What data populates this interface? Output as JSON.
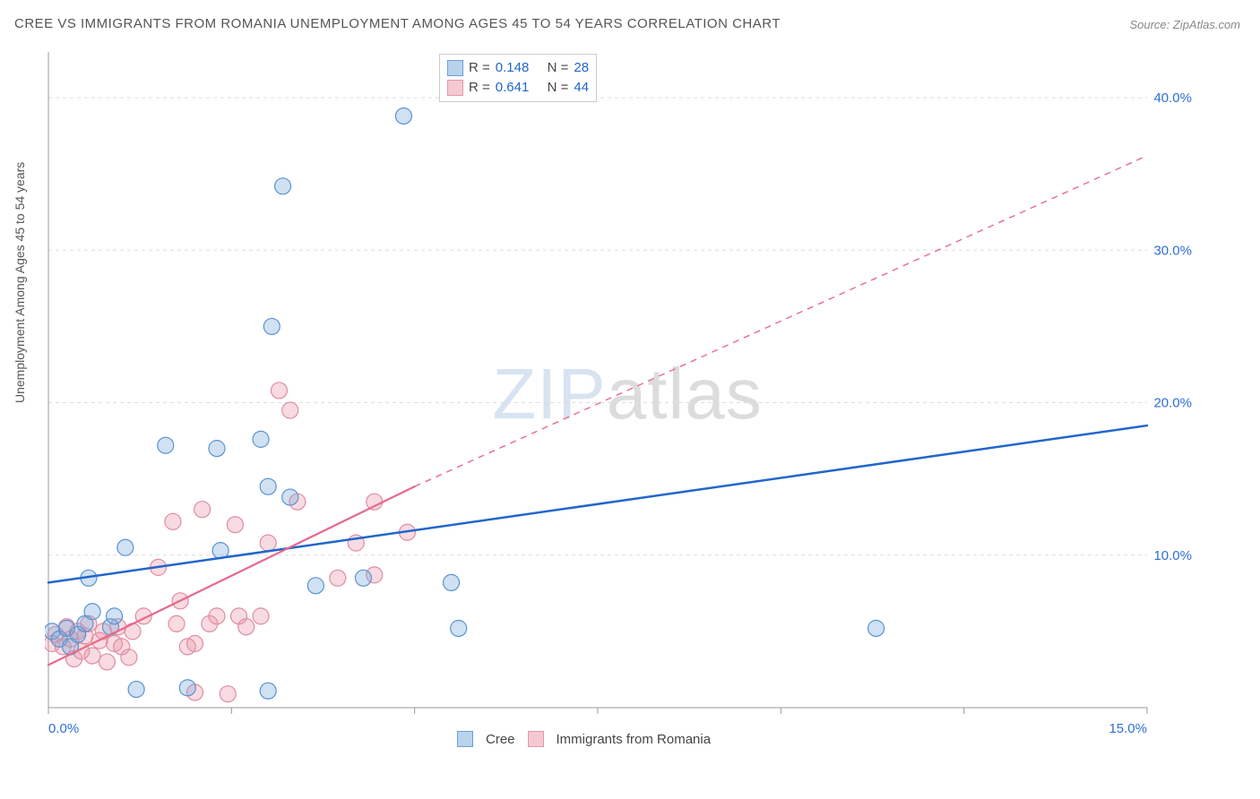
{
  "title": "CREE VS IMMIGRANTS FROM ROMANIA UNEMPLOYMENT AMONG AGES 45 TO 54 YEARS CORRELATION CHART",
  "source": "Source: ZipAtlas.com",
  "ylabel": "Unemployment Among Ages 45 to 54 years",
  "watermark_a": "ZIP",
  "watermark_b": "atlas",
  "chart": {
    "type": "scatter",
    "x_range": [
      0,
      15
    ],
    "y_range": [
      0,
      43
    ],
    "x_ticks": [
      0,
      2.5,
      5,
      7.5,
      10,
      12.5,
      15
    ],
    "x_tick_labels": {
      "0": "0.0%",
      "15": "15.0%"
    },
    "y_ticks": [
      10,
      20,
      30,
      40
    ],
    "y_tick_labels": {
      "10": "10.0%",
      "20": "20.0%",
      "30": "30.0%",
      "40": "40.0%"
    },
    "grid_color": "#dddddd",
    "axis_color": "#999999",
    "background_color": "#ffffff",
    "marker_radius": 9,
    "marker_stroke_width": 1.2,
    "series": [
      {
        "name": "Cree",
        "label": "Cree",
        "fill": "rgba(120,170,220,0.35)",
        "stroke": "#5a94d0",
        "legend_fill": "#b9d3ed",
        "legend_stroke": "#6aa0d8",
        "R": "0.148",
        "N": "28",
        "trend": {
          "solid": {
            "x1": 0,
            "y1": 8.2,
            "x2": 15,
            "y2": 18.5
          },
          "dashed": null,
          "stroke": "#2166cc",
          "width": 2.5
        },
        "points": [
          [
            0.05,
            5.0
          ],
          [
            0.15,
            4.5
          ],
          [
            0.25,
            5.2
          ],
          [
            0.3,
            4.0
          ],
          [
            0.4,
            4.8
          ],
          [
            0.5,
            5.5
          ],
          [
            0.6,
            6.3
          ],
          [
            0.55,
            8.5
          ],
          [
            1.05,
            10.5
          ],
          [
            1.6,
            17.2
          ],
          [
            1.2,
            1.2
          ],
          [
            1.9,
            1.3
          ],
          [
            2.3,
            17.0
          ],
          [
            2.35,
            10.3
          ],
          [
            2.9,
            17.6
          ],
          [
            3.0,
            14.5
          ],
          [
            3.0,
            1.1
          ],
          [
            3.3,
            13.8
          ],
          [
            3.2,
            34.2
          ],
          [
            3.05,
            25.0
          ],
          [
            3.65,
            8.0
          ],
          [
            4.3,
            8.5
          ],
          [
            4.85,
            38.8
          ],
          [
            5.5,
            8.2
          ],
          [
            5.6,
            5.2
          ],
          [
            11.3,
            5.2
          ],
          [
            0.85,
            5.3
          ],
          [
            0.9,
            6.0
          ]
        ]
      },
      {
        "name": "Romania",
        "label": "Immigrants from Romania",
        "fill": "rgba(235,150,170,0.35)",
        "stroke": "#df8da2",
        "legend_fill": "#f5c9d3",
        "legend_stroke": "#e695a9",
        "R": "0.641",
        "N": "44",
        "trend": {
          "solid": {
            "x1": 0,
            "y1": 2.8,
            "x2": 5.0,
            "y2": 14.5
          },
          "dashed": {
            "x1": 5.0,
            "y1": 14.5,
            "x2": 15,
            "y2": 36.2
          },
          "stroke": "#e76a8a",
          "width": 2.2
        },
        "points": [
          [
            0.05,
            4.2
          ],
          [
            0.1,
            4.8
          ],
          [
            0.2,
            4.0
          ],
          [
            0.25,
            5.3
          ],
          [
            0.3,
            4.5
          ],
          [
            0.35,
            3.2
          ],
          [
            0.4,
            5.0
          ],
          [
            0.45,
            3.7
          ],
          [
            0.5,
            4.7
          ],
          [
            0.55,
            5.5
          ],
          [
            0.6,
            3.4
          ],
          [
            0.7,
            4.4
          ],
          [
            0.75,
            5.0
          ],
          [
            0.8,
            3.0
          ],
          [
            0.9,
            4.2
          ],
          [
            0.95,
            5.3
          ],
          [
            1.0,
            4.0
          ],
          [
            1.1,
            3.3
          ],
          [
            1.15,
            5.0
          ],
          [
            1.3,
            6.0
          ],
          [
            1.5,
            9.2
          ],
          [
            1.7,
            12.2
          ],
          [
            1.75,
            5.5
          ],
          [
            1.8,
            7.0
          ],
          [
            1.9,
            4.0
          ],
          [
            2.0,
            4.2
          ],
          [
            2.0,
            1.0
          ],
          [
            2.1,
            13.0
          ],
          [
            2.2,
            5.5
          ],
          [
            2.3,
            6.0
          ],
          [
            2.55,
            12.0
          ],
          [
            2.6,
            6.0
          ],
          [
            2.7,
            5.3
          ],
          [
            2.9,
            6.0
          ],
          [
            3.0,
            10.8
          ],
          [
            3.15,
            20.8
          ],
          [
            3.3,
            19.5
          ],
          [
            3.4,
            13.5
          ],
          [
            3.95,
            8.5
          ],
          [
            4.2,
            10.8
          ],
          [
            4.45,
            13.5
          ],
          [
            4.45,
            8.7
          ],
          [
            4.9,
            11.5
          ],
          [
            2.45,
            0.9
          ]
        ]
      }
    ],
    "legend_top": {
      "rows": [
        {
          "series": "Cree",
          "R_label": "R =",
          "N_label": "N ="
        },
        {
          "series": "Romania",
          "R_label": "R =",
          "N_label": "N ="
        }
      ]
    }
  }
}
